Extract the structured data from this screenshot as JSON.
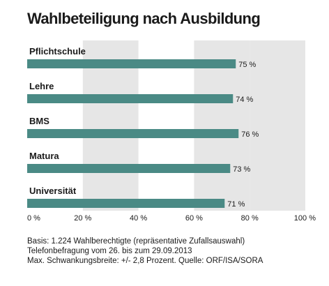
{
  "chart_data": {
    "type": "bar",
    "orientation": "horizontal",
    "title": "Wahlbeteiligung nach Ausbildung",
    "categories": [
      "Pflichtschule",
      "Lehre",
      "BMS",
      "Matura",
      "Universität"
    ],
    "values": [
      75,
      74,
      76,
      73,
      71
    ],
    "value_labels": [
      "75 %",
      "74 %",
      "76 %",
      "73 %",
      "71 %"
    ],
    "xlim": [
      0,
      100
    ],
    "x_ticks": [
      0,
      20,
      40,
      60,
      80,
      100
    ],
    "x_tick_labels": [
      "0 %",
      "20 %",
      "40 %",
      "60 %",
      "80 %",
      "100 %"
    ],
    "bar_color": "#4a8a85",
    "band_color": "#e6e6e6",
    "grid": "alternating shaded bands every 20 %"
  },
  "footer": {
    "line1": "Basis: 1.224 Wahlberechtigte (repräsentative Zufallsauswahl)",
    "line2": "Telefonbefragung vom 26. bis zum 29.09.2013",
    "line3": "Max. Schwankungsbreite: +/- 2,8 Prozent. Quelle: ORF/ISA/SORA"
  }
}
